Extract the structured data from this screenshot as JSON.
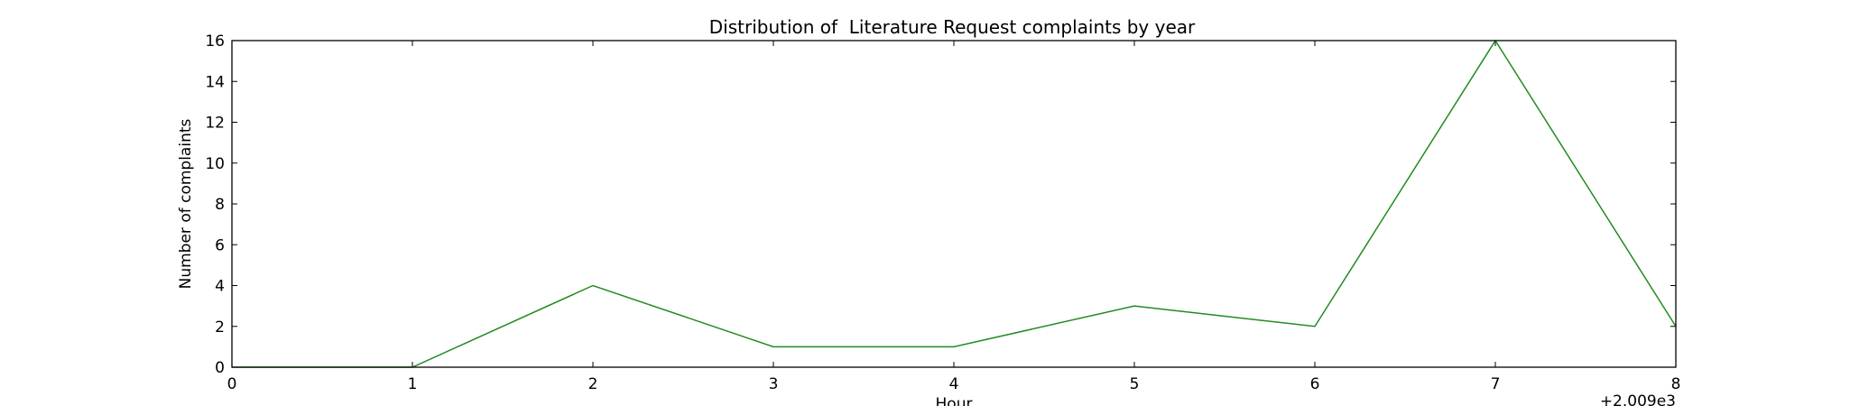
{
  "chart_data": {
    "type": "line",
    "title": "Distribution of  Literature Request complaints by year",
    "xlabel": "Hour",
    "ylabel": "Number of complaints",
    "x_offset_label": "+2.009e3",
    "xlim": [
      0,
      8
    ],
    "ylim": [
      0,
      16
    ],
    "xticks": [
      0,
      1,
      2,
      3,
      4,
      5,
      6,
      7,
      8
    ],
    "yticks": [
      0,
      2,
      4,
      6,
      8,
      10,
      12,
      14,
      16
    ],
    "grid": false,
    "series": [
      {
        "color": "#1f8c1f",
        "x": [
          0,
          1,
          2,
          3,
          4,
          5,
          6,
          7,
          8
        ],
        "values": [
          0,
          0,
          4,
          1,
          1,
          3,
          2,
          16,
          2
        ]
      }
    ]
  }
}
